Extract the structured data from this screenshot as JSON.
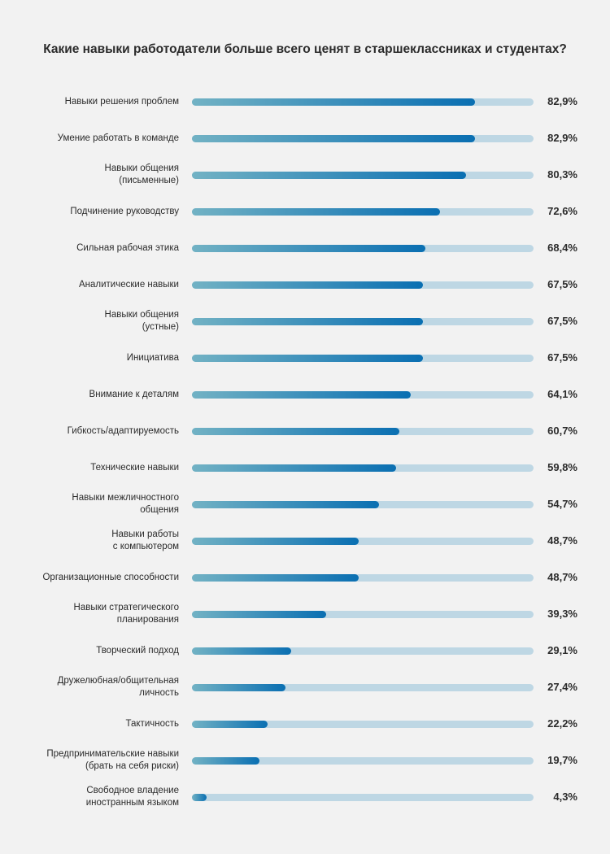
{
  "chart_data": {
    "type": "bar",
    "orientation": "horizontal",
    "title": "Какие навыки работодатели больше всего ценят в старшеклассниках и студентах?",
    "xlim": [
      0,
      100
    ],
    "unit": "%",
    "categories": [
      [
        "Навыки решения проблем"
      ],
      [
        "Умение работать в команде"
      ],
      [
        "Навыки общения",
        "(письменные)"
      ],
      [
        "Подчинение руководству"
      ],
      [
        "Сильная рабочая этика"
      ],
      [
        "Аналитические навыки"
      ],
      [
        "Навыки общения",
        "(устные)"
      ],
      [
        "Инициатива"
      ],
      [
        "Внимание к деталям"
      ],
      [
        "Гибкость/адаптируемость"
      ],
      [
        "Технические навыки"
      ],
      [
        "Навыки межличностного",
        "общения"
      ],
      [
        "Навыки работы",
        "с компьютером"
      ],
      [
        "Организационные способности"
      ],
      [
        "Навыки стратегического",
        "планирования"
      ],
      [
        "Творческий подход"
      ],
      [
        "Дружелюбная/общительная",
        "личность"
      ],
      [
        "Тактичность"
      ],
      [
        "Предпринимательские навыки",
        "(брать на себя риски)"
      ],
      [
        "Свободное владение",
        "иностранным языком"
      ]
    ],
    "values": [
      82.9,
      82.9,
      80.3,
      72.6,
      68.4,
      67.5,
      67.5,
      67.5,
      64.1,
      60.7,
      59.8,
      54.7,
      48.7,
      48.7,
      39.3,
      29.1,
      27.4,
      22.2,
      19.7,
      4.3
    ],
    "value_labels": [
      "82,9%",
      "82,9%",
      "80,3%",
      "72,6%",
      "68,4%",
      "67,5%",
      "67,5%",
      "67,5%",
      "64,1%",
      "60,7%",
      "59,8%",
      "54,7%",
      "48,7%",
      "48,7%",
      "39,3%",
      "29,1%",
      "27,4%",
      "22,2%",
      "19,7%",
      "4,3%"
    ],
    "colors": {
      "fill_start": "#72b2c4",
      "fill_end": "#0a6fb2",
      "track": "#bed7e4"
    }
  }
}
